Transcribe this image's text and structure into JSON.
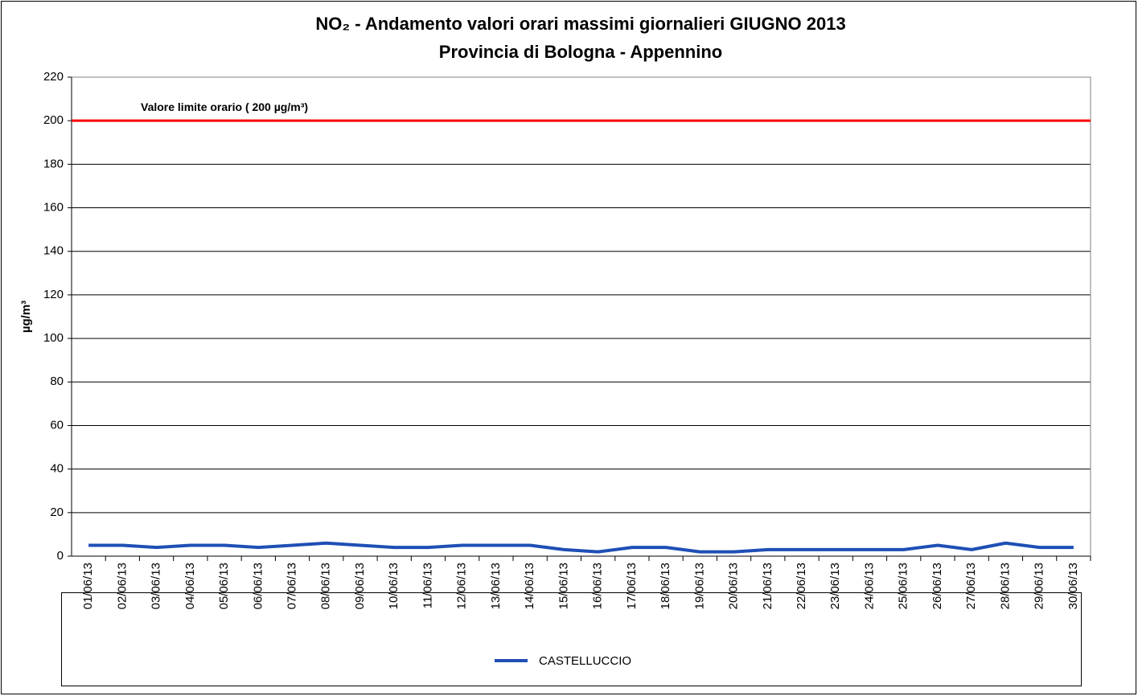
{
  "chart_data": {
    "type": "line",
    "title": "NO₂ - Andamento valori orari massimi giornalieri GIUGNO 2013",
    "subtitle": "Provincia di Bologna - Appennino",
    "y_label": "µg/m³",
    "categories": [
      "01/06/13",
      "02/06/13",
      "03/06/13",
      "04/06/13",
      "05/06/13",
      "06/06/13",
      "07/06/13",
      "08/06/13",
      "09/06/13",
      "10/06/13",
      "11/06/13",
      "12/06/13",
      "13/06/13",
      "14/06/13",
      "15/06/13",
      "16/06/13",
      "17/06/13",
      "18/06/13",
      "19/06/13",
      "20/06/13",
      "21/06/13",
      "22/06/13",
      "23/06/13",
      "24/06/13",
      "25/06/13",
      "26/06/13",
      "27/06/13",
      "28/06/13",
      "29/06/13",
      "30/06/13"
    ],
    "series": [
      {
        "name": "CASTELLUCCIO",
        "color": "#1f4fb5",
        "values": [
          5,
          5,
          4,
          5,
          5,
          4,
          5,
          6,
          5,
          4,
          4,
          5,
          5,
          5,
          3,
          2,
          4,
          4,
          2,
          2,
          3,
          3,
          3,
          3,
          3,
          5,
          3,
          6,
          4,
          4
        ]
      }
    ],
    "reference_line": {
      "value": 200,
      "color": "#ff0000",
      "label": "Valore limite orario ( 200 µg/m³)"
    },
    "ylim": [
      0,
      220
    ],
    "yticks": [
      0,
      20,
      40,
      60,
      80,
      100,
      120,
      140,
      160,
      180,
      200,
      220
    ],
    "grid": true,
    "legend": "bottom"
  }
}
